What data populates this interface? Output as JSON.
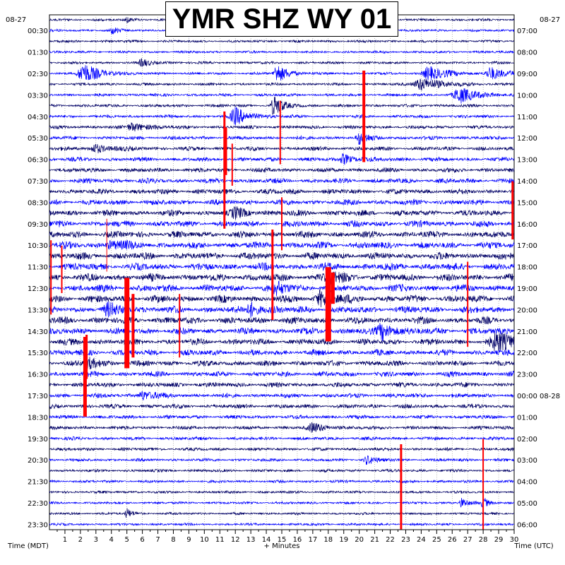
{
  "chart_data": {
    "type": "line",
    "title": "YMR SHZ WY 01",
    "xlabel": "+ Minutes",
    "left_axis_label": "Time (MDT)",
    "right_axis_label": "Time (UTC)",
    "left_date": "08-27",
    "right_date": "08-27",
    "x_ticks": [
      "1",
      "2",
      "3",
      "4",
      "5",
      "6",
      "7",
      "8",
      "9",
      "10",
      "11",
      "12",
      "13",
      "14",
      "15",
      "16",
      "17",
      "18",
      "19",
      "20",
      "21",
      "22",
      "23",
      "24",
      "25",
      "26",
      "27",
      "28",
      "29",
      "30"
    ],
    "xlim": [
      0,
      30
    ],
    "left_hour_labels": [
      "00:30",
      "01:30",
      "02:30",
      "03:30",
      "04:30",
      "05:30",
      "06:30",
      "07:30",
      "08:30",
      "09:30",
      "10:30",
      "11:30",
      "12:30",
      "13:30",
      "14:30",
      "15:30",
      "16:30",
      "17:30",
      "18:30",
      "19:30",
      "20:30",
      "21:30",
      "22:30",
      "23:30"
    ],
    "right_hour_labels": [
      "07:00",
      "08:00",
      "09:00",
      "10:00",
      "11:00",
      "12:00",
      "13:00",
      "14:00",
      "15:00",
      "16:00",
      "17:00",
      "18:00",
      "19:00",
      "20:00",
      "21:00",
      "22:00",
      "23:00",
      "00:00 08-28",
      "01:00",
      "02:00",
      "03:00",
      "04:00",
      "05:00",
      "06:00"
    ],
    "trace_count": 48,
    "trace_colors": [
      "#000066",
      "#0000ff"
    ],
    "clip_color": "#ff0000"
  }
}
